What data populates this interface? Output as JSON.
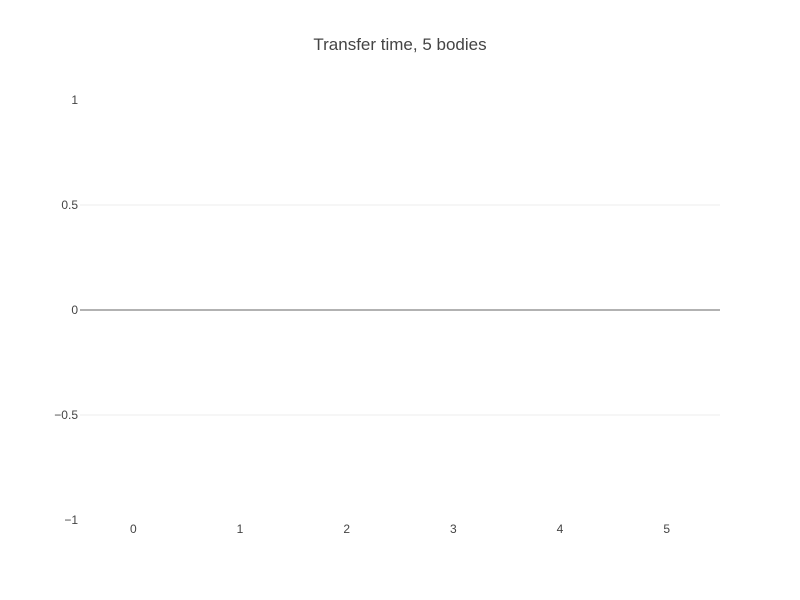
{
  "chart_data": {
    "type": "bar",
    "title": "Transfer time, 5 bodies",
    "xlabel": "",
    "ylabel": "",
    "categories": [
      0,
      1,
      2,
      3,
      4,
      5
    ],
    "values": [
      0,
      0,
      0,
      0,
      0,
      0
    ],
    "x_ticks": [
      "0",
      "1",
      "2",
      "3",
      "4",
      "5"
    ],
    "y_ticks": [
      {
        "value": 1,
        "label": "1"
      },
      {
        "value": 0.5,
        "label": "0.5"
      },
      {
        "value": 0,
        "label": "0"
      },
      {
        "value": -0.5,
        "label": "−0.5"
      },
      {
        "value": -1,
        "label": "−1"
      }
    ],
    "ylim": [
      -1,
      1
    ],
    "xlim": [
      -0.5,
      5.5
    ],
    "grid": true,
    "legend": "none",
    "colors": {
      "grid": "#eeeeee",
      "zero_line": "#999999",
      "text": "#444444"
    }
  }
}
